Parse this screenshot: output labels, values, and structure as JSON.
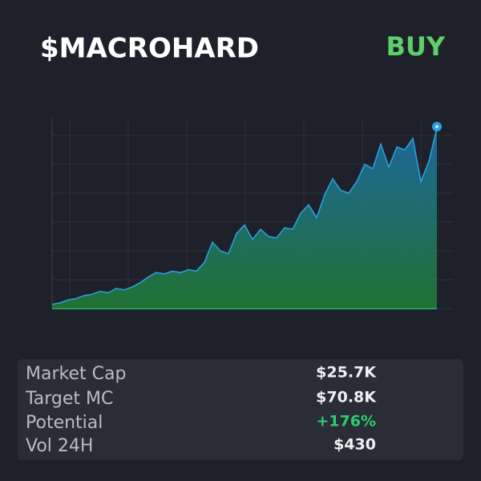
{
  "header": {
    "title": "$MACROHARD",
    "action": "BUY"
  },
  "chart_data": {
    "type": "area",
    "color": "#2a9fe0",
    "values": [
      3,
      4,
      6,
      7,
      9,
      10,
      12,
      11,
      14,
      13,
      15,
      18,
      22,
      25,
      24,
      26,
      25,
      27,
      26,
      32,
      46,
      40,
      38,
      52,
      58,
      48,
      55,
      50,
      49,
      56,
      55,
      66,
      72,
      63,
      79,
      90,
      82,
      80,
      88,
      100,
      97,
      114,
      98,
      112,
      110,
      118,
      88,
      102,
      125
    ],
    "ylim": [
      0,
      130
    ],
    "yticks": [
      0,
      20,
      40,
      60,
      80,
      100,
      120
    ],
    "grid": true
  },
  "stats": [
    {
      "label": "Market Cap",
      "value": "$25.7K"
    },
    {
      "label": "Target MC",
      "value": "$70.8K"
    },
    {
      "label": "Potential",
      "value": "+176%"
    },
    {
      "label": "Vol 24H",
      "value": "$430"
    }
  ]
}
